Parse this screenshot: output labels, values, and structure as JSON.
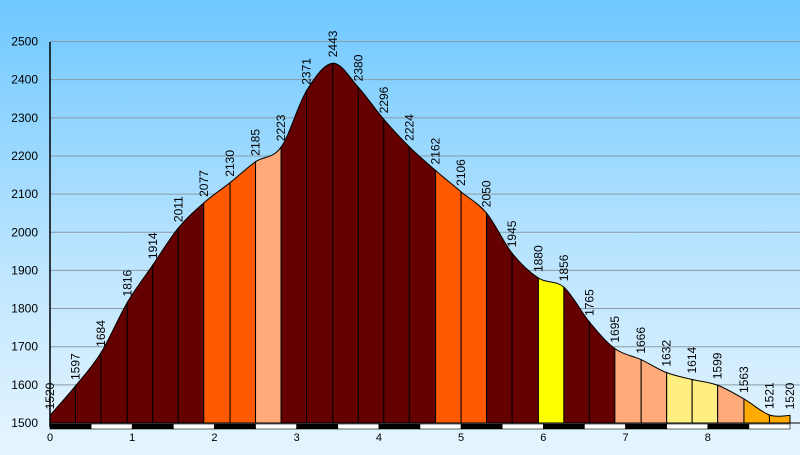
{
  "chart_data": {
    "type": "area",
    "title": "",
    "xlabel": "",
    "ylabel": "",
    "xlim": [
      0,
      9
    ],
    "ylim": [
      1500,
      2525
    ],
    "grid": true,
    "y_ticks": [
      1500,
      1600,
      1700,
      1800,
      1900,
      2000,
      2100,
      2200,
      2300,
      2400,
      2500
    ],
    "x_ticks": [
      0,
      1,
      2,
      3,
      4,
      5,
      6,
      7,
      8
    ],
    "x": [
      0,
      0.31,
      0.62,
      0.94,
      1.25,
      1.56,
      1.87,
      2.19,
      2.5,
      2.81,
      3.12,
      3.44,
      3.75,
      4.06,
      4.37,
      4.69,
      5.0,
      5.31,
      5.62,
      5.94,
      6.25,
      6.56,
      6.87,
      7.19,
      7.5,
      7.81,
      8.12,
      8.44,
      8.75,
      9.0
    ],
    "values": [
      1520,
      1597,
      1684,
      1816,
      1914,
      2011,
      2077,
      2130,
      2185,
      2223,
      2371,
      2443,
      2380,
      2296,
      2224,
      2162,
      2106,
      2050,
      1945,
      1880,
      1856,
      1765,
      1695,
      1666,
      1632,
      1614,
      1599,
      1563,
      1521,
      1520
    ],
    "labels": [
      "1520",
      "1597",
      "1684",
      "1816",
      "1914",
      "2011",
      "2077",
      "2130",
      "2185",
      "2223",
      "2371",
      "2443",
      "2380",
      "2296",
      "2224",
      "2162",
      "2106",
      "2050",
      "1945",
      "1880",
      "1856",
      "1765",
      "1695",
      "1666",
      "1632",
      "1614",
      "1599",
      "1563",
      "1521",
      "1520"
    ],
    "segment_colors": [
      "#650000",
      "#650000",
      "#650000",
      "#650000",
      "#650000",
      "#650000",
      "#ff5a00",
      "#ff5a00",
      "#ffaa78",
      "#650000",
      "#650000",
      "#650000",
      "#650000",
      "#650000",
      "#650000",
      "#ff5a00",
      "#ff5a00",
      "#650000",
      "#650000",
      "#ffff00",
      "#650000",
      "#650000",
      "#ffaa78",
      "#ffaa78",
      "#ffee80",
      "#ffee80",
      "#ffaa78",
      "#ffaa00",
      "#ffaa00"
    ],
    "colors": {
      "grid": "#8a9aa8",
      "axis": "#000000",
      "segment_border": "#000000"
    }
  }
}
